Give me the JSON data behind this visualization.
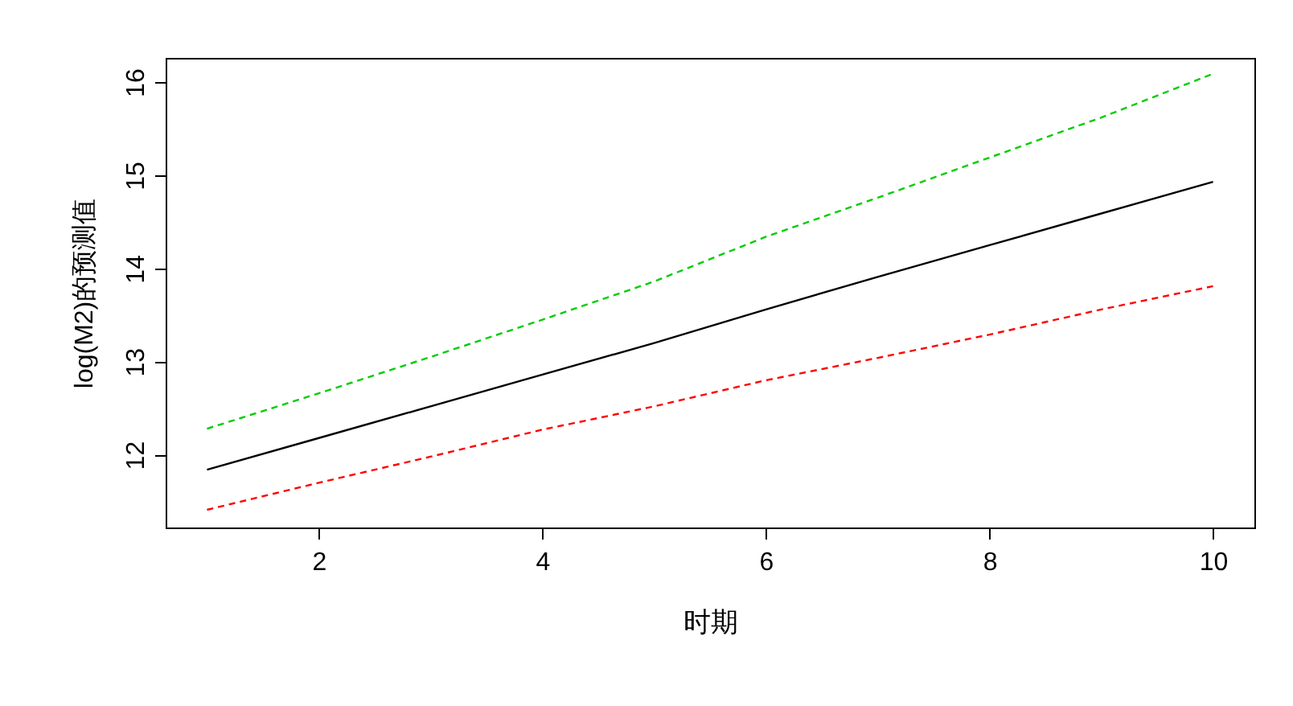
{
  "chart_data": {
    "type": "line",
    "xlabel": "时期",
    "ylabel": "log(M2)的预测值",
    "x": [
      1,
      2,
      3,
      4,
      5,
      6,
      7,
      8,
      9,
      10
    ],
    "xlim": [
      0.63,
      10.37
    ],
    "ylim": [
      11.22,
      16.26
    ],
    "xticks": [
      2,
      4,
      6,
      8,
      10
    ],
    "yticks": [
      12,
      13,
      14,
      15,
      16
    ],
    "grid": false,
    "marker": "none",
    "series": [
      {
        "color": "#000000",
        "line_style": "solid",
        "values": [
          11.84,
          12.18,
          12.52,
          12.86,
          13.2,
          13.56,
          13.91,
          14.25,
          14.59,
          14.93
        ]
      },
      {
        "color": "#ff0000",
        "line_style": "dashed",
        "values": [
          11.41,
          11.7,
          11.98,
          12.27,
          12.52,
          12.8,
          13.04,
          13.29,
          13.56,
          13.81
        ]
      },
      {
        "color": "#00cd00",
        "line_style": "dashed",
        "values": [
          12.28,
          12.66,
          13.05,
          13.45,
          13.86,
          14.34,
          14.76,
          15.19,
          15.62,
          16.09
        ]
      }
    ]
  }
}
